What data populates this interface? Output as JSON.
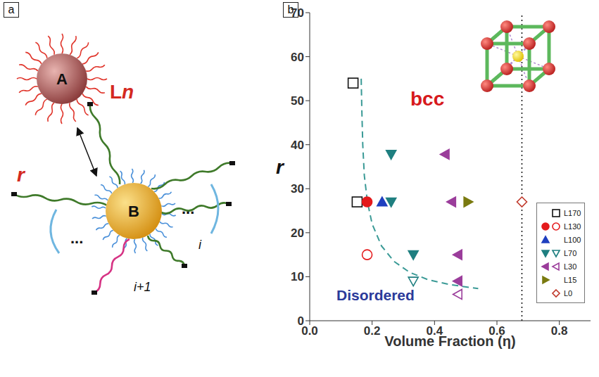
{
  "diagram": {
    "panel_label": "a",
    "particles": [
      {
        "label": "A"
      },
      {
        "label": "B"
      }
    ],
    "linker_label": "Ln",
    "chain_label": "r",
    "index_labels": [
      "i",
      "i+1"
    ],
    "ellipsis": "..."
  },
  "chart_data": {
    "type": "scatter",
    "panel_label": "b",
    "x_label": "Volume Fraction (η)",
    "y_label": "r",
    "xlim": [
      0,
      0.9
    ],
    "xticks": [
      {
        "value": 0,
        "label": "0.0"
      },
      0.2,
      0.4,
      0.6,
      0.8
    ],
    "ylim": [
      0,
      70
    ],
    "yticks": [
      0,
      10,
      20,
      30,
      40,
      50,
      60,
      70
    ],
    "grid": false,
    "legend": "lower right",
    "annotations": [
      {
        "text": "bcc",
        "color": "#d7191c"
      },
      {
        "text": "Disordered",
        "color": "#2b3a9a"
      }
    ],
    "series": [
      {
        "name": "L170",
        "color": "#111111",
        "marker": "square",
        "points": [
          {
            "x": 0.139,
            "y": 54,
            "filled": false
          },
          {
            "x": 0.152,
            "y": 27,
            "filled": false
          }
        ]
      },
      {
        "name": "L130",
        "color": "#e41a1c",
        "marker": "circle",
        "points": [
          {
            "x": 0.184,
            "y": 27,
            "filled": true
          },
          {
            "x": 0.184,
            "y": 15,
            "filled": false
          }
        ]
      },
      {
        "name": "L100",
        "color": "#1f3fbf",
        "marker": "triangle-up",
        "points": [
          {
            "x": 0.232,
            "y": 27,
            "filled": true
          }
        ]
      },
      {
        "name": "L70",
        "color": "#1f7f80",
        "marker": "triangle-down",
        "points": [
          {
            "x": 0.261,
            "y": 37.8,
            "filled": true
          },
          {
            "x": 0.261,
            "y": 27,
            "filled": true
          },
          {
            "x": 0.332,
            "y": 15,
            "filled": true
          },
          {
            "x": 0.332,
            "y": 9,
            "filled": false
          }
        ]
      },
      {
        "name": "L30",
        "color": "#9b3d9b",
        "marker": "triangle-left",
        "points": [
          {
            "x": 0.434,
            "y": 37.8,
            "filled": true
          },
          {
            "x": 0.455,
            "y": 27,
            "filled": true
          },
          {
            "x": 0.475,
            "y": 15,
            "filled": true
          },
          {
            "x": 0.475,
            "y": 9,
            "filled": true
          },
          {
            "x": 0.475,
            "y": 6,
            "filled": false
          }
        ]
      },
      {
        "name": "L15",
        "color": "#7a7a10",
        "marker": "triangle-right",
        "points": [
          {
            "x": 0.507,
            "y": 27,
            "filled": true
          }
        ]
      },
      {
        "name": "L0",
        "color": "#c0392b",
        "marker": "diamond",
        "points": [
          {
            "x": 0.68,
            "y": 27,
            "filled": false
          }
        ]
      }
    ],
    "boundary": {
      "color": "#3a9a96",
      "line_style": "dashed",
      "x": [
        0.165,
        0.167,
        0.17,
        0.175,
        0.185,
        0.2,
        0.23,
        0.27,
        0.32,
        0.38,
        0.45,
        0.54
      ],
      "y": [
        55,
        48,
        40,
        33,
        27,
        22,
        17,
        13.5,
        11,
        9.3,
        8.2,
        7.3
      ]
    },
    "reference_line": {
      "x": 0.68,
      "line_style": "dotted",
      "color": "#111111"
    }
  }
}
